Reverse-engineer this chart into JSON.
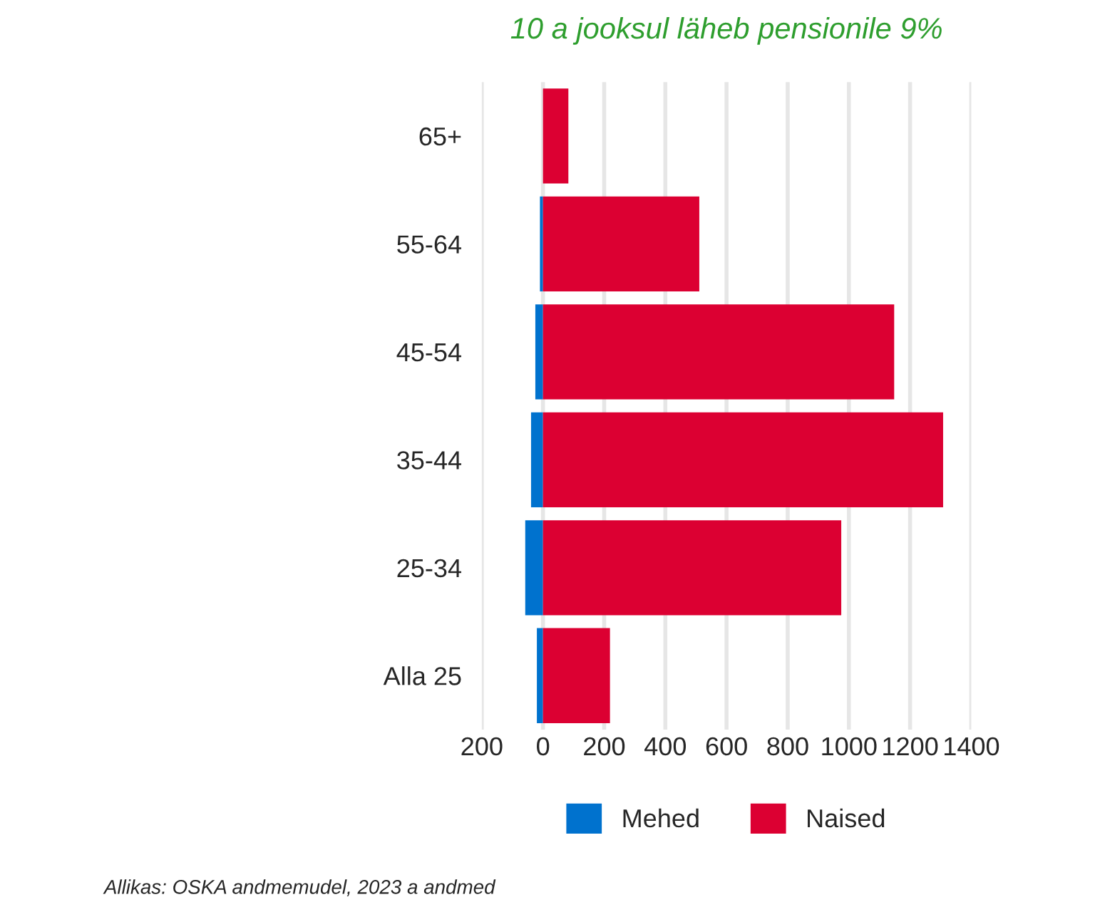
{
  "chart_data": {
    "type": "bar",
    "orientation": "horizontal",
    "stacked": true,
    "title": "10 a jooksul läheb pensionile 9%",
    "categories": [
      "65+",
      "55-64",
      "45-54",
      "35-44",
      "25-34",
      "Alla 25"
    ],
    "series": [
      {
        "name": "Mehed",
        "color": "#0072ce",
        "values": [
          0,
          -10,
          -25,
          -39,
          -58,
          -20
        ]
      },
      {
        "name": "Naised",
        "color": "#dc0032",
        "values": [
          83,
          511,
          1148,
          1308,
          975,
          219
        ]
      }
    ],
    "xlim": [
      -200,
      1400
    ],
    "xticks": [
      {
        "value": -200,
        "label": "200"
      },
      0,
      200,
      400,
      600,
      800,
      1000,
      1200,
      1400
    ],
    "grid": "x",
    "legend": "bottom",
    "annotations": [
      "Allikas: OSKA andmemudel, 2023 a andmed"
    ]
  }
}
